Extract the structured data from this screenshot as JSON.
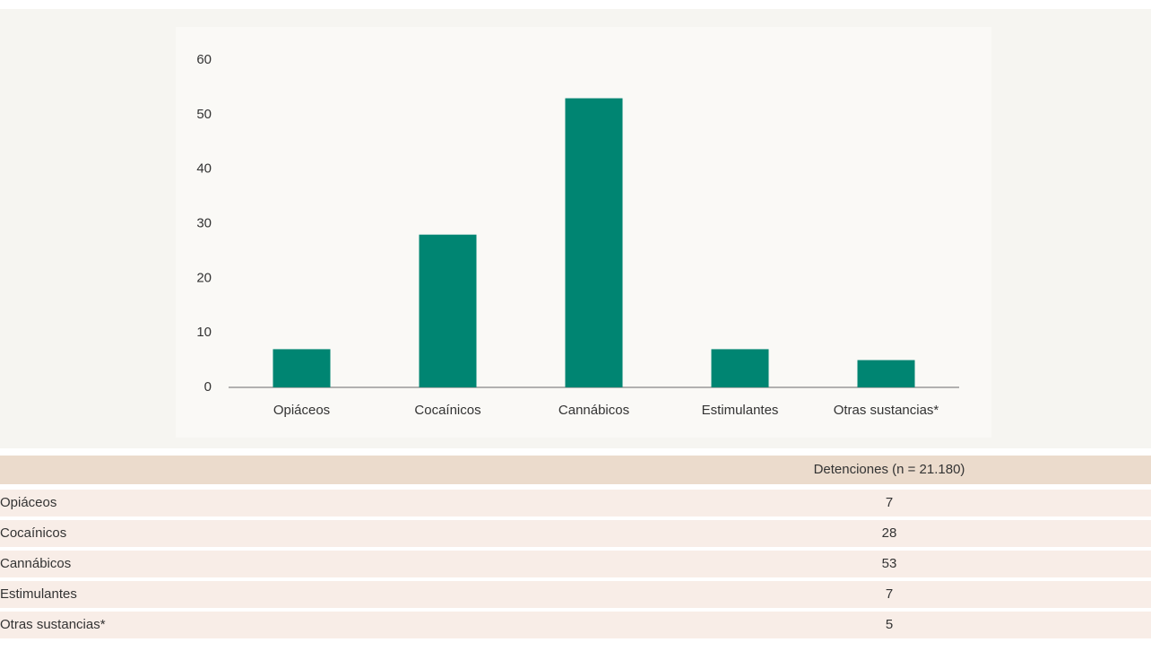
{
  "chart_data": {
    "type": "bar",
    "categories": [
      "Opiáceos",
      "Cocaínicos",
      "Cannábicos",
      "Estimulantes",
      "Otras sustancias*"
    ],
    "values": [
      7,
      28,
      53,
      7,
      5
    ],
    "color": "#008572",
    "ylim": [
      0,
      60
    ],
    "yticks": [
      0,
      10,
      20,
      30,
      40,
      50,
      60
    ],
    "grid": false
  },
  "table": {
    "header": "Detenciones (n = 21.180)",
    "rows": [
      [
        "Opiáceos",
        7
      ],
      [
        "Cocaínicos",
        28
      ],
      [
        "Cannábicos",
        53
      ],
      [
        "Estimulantes",
        7
      ],
      [
        "Otras sustancias*",
        5
      ]
    ]
  }
}
